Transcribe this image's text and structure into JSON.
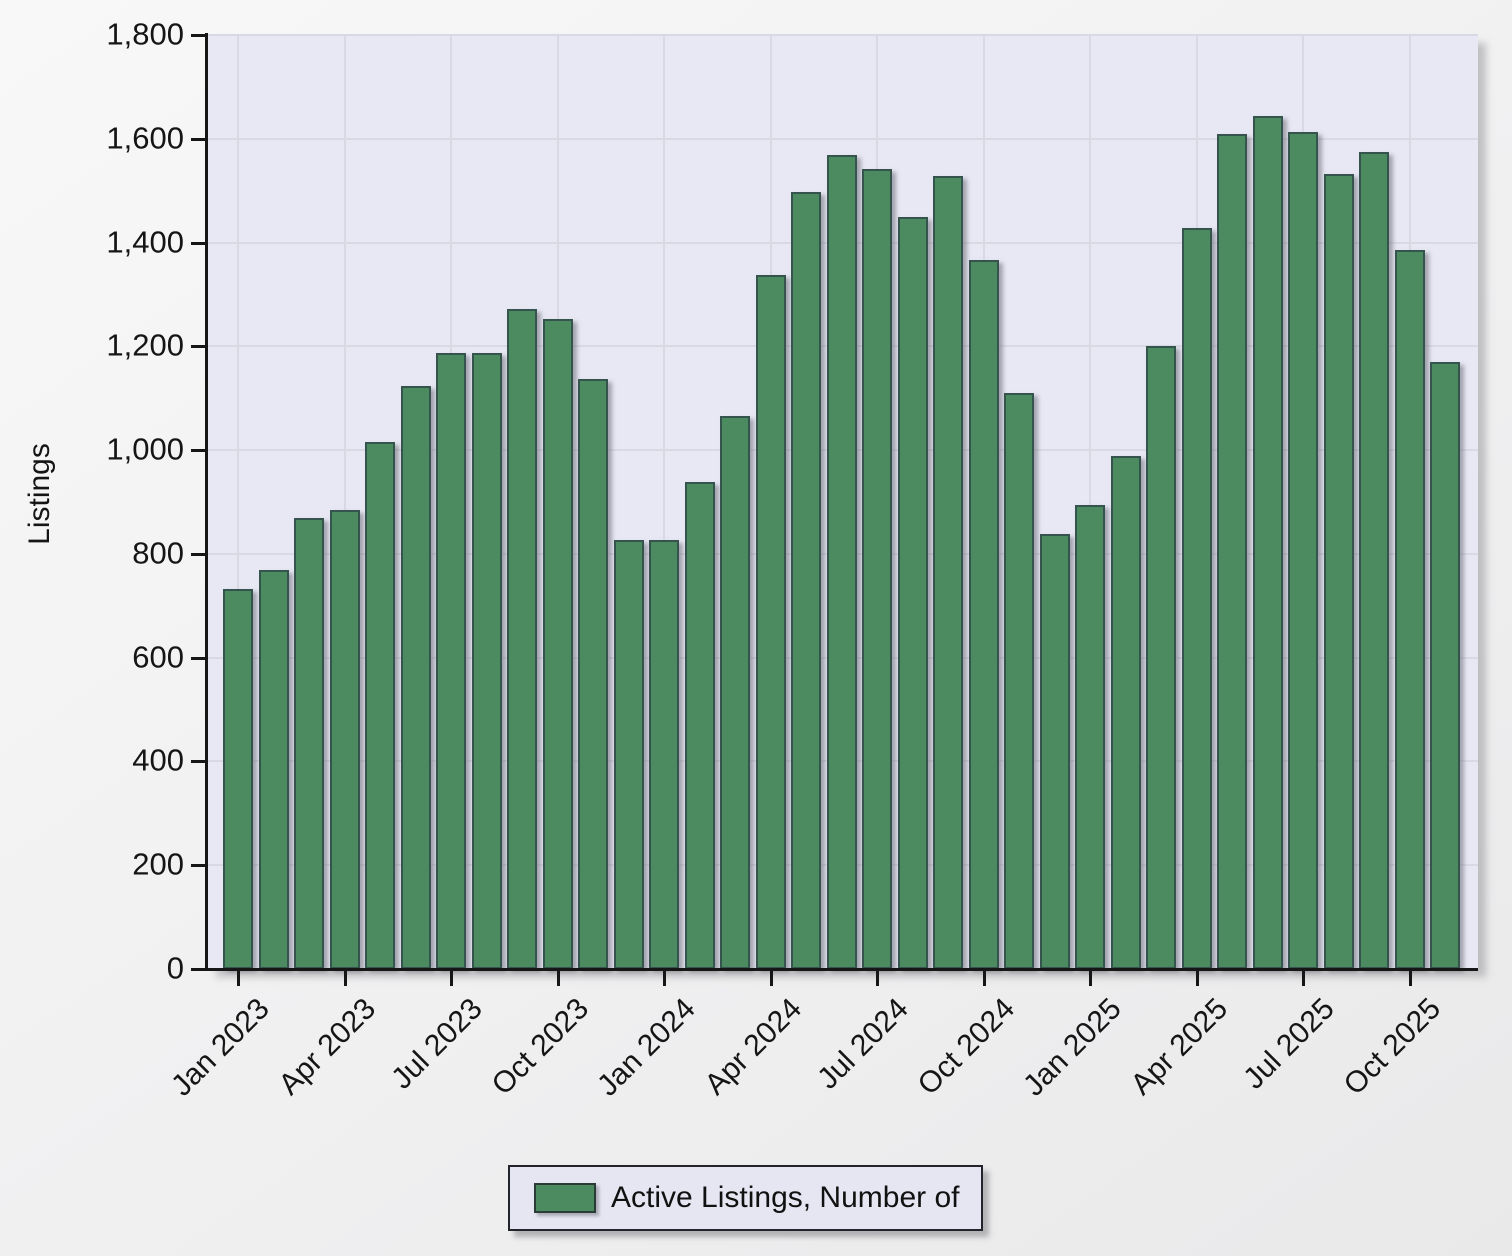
{
  "chart_data": {
    "type": "bar",
    "title": "",
    "xlabel": "",
    "ylabel": "Listings",
    "series_name": "Active Listings, Number of",
    "categories": [
      "Jan 2023",
      "Feb 2023",
      "Mar 2023",
      "Apr 2023",
      "May 2023",
      "Jun 2023",
      "Jul 2023",
      "Aug 2023",
      "Sep 2023",
      "Oct 2023",
      "Nov 2023",
      "Dec 2023",
      "Jan 2024",
      "Feb 2024",
      "Mar 2024",
      "Apr 2024",
      "May 2024",
      "Jun 2024",
      "Jul 2024",
      "Aug 2024",
      "Sep 2024",
      "Oct 2024",
      "Nov 2024",
      "Dec 2024",
      "Jan 2025",
      "Feb 2025",
      "Mar 2025",
      "Apr 2025",
      "May 2025",
      "Jun 2025",
      "Jul 2025",
      "Aug 2025",
      "Sep 2025",
      "Oct 2025",
      "Nov 2025"
    ],
    "values": [
      732,
      768,
      870,
      885,
      1016,
      1124,
      1187,
      1187,
      1272,
      1253,
      1137,
      827,
      827,
      938,
      1066,
      1338,
      1498,
      1569,
      1542,
      1449,
      1528,
      1367,
      1110,
      838,
      894,
      989,
      1201,
      1428,
      1609,
      1643,
      1614,
      1532,
      1574,
      1386,
      1169
    ],
    "x_tick_labels": [
      "Jan 2023",
      "Apr 2023",
      "Jul 2023",
      "Oct 2023",
      "Jan 2024",
      "Apr 2024",
      "Jul 2024",
      "Oct 2024",
      "Jan 2025",
      "Apr 2025",
      "Jul 2025",
      "Oct 2025"
    ],
    "y_ticks": [
      0,
      200,
      400,
      600,
      800,
      1000,
      1200,
      1400,
      1600,
      1800
    ],
    "y_tick_labels": [
      "0",
      "200",
      "400",
      "600",
      "800",
      "1,000",
      "1,200",
      "1,400",
      "1,600",
      "1,800"
    ],
    "ylim": [
      0,
      1800
    ],
    "grid": true,
    "legend_position": "bottom",
    "bar_color": "#4c8b60",
    "bar_border_color": "#35544e",
    "plot_bg_color": "#e8e8f4",
    "grid_color": "#d9d9e4",
    "axis_color": "#161616"
  },
  "legend": {
    "label": "Active Listings, Number of"
  }
}
